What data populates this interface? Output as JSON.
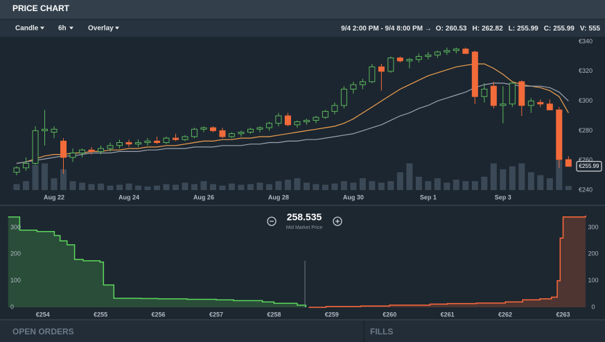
{
  "header": {
    "title": "PRICE CHART"
  },
  "toolbar": {
    "chart_type": "Candle",
    "interval": "6h",
    "overlay": "Overlay",
    "range": "9/4 2:00 PM - 9/4 8:00 PM →",
    "open_label": "O:",
    "high_label": "H:",
    "low_label": "L:",
    "close_label": "C:",
    "volume_label": "V:"
  },
  "chart_data": [
    {
      "type": "candlestick",
      "x": [
        0,
        0.25,
        0.5,
        0.75,
        1,
        1.25,
        1.5,
        1.75,
        2,
        2.25,
        2.5,
        2.75,
        3,
        3.25,
        3.5,
        3.75,
        4,
        4.25,
        4.5,
        4.75,
        5,
        5.25,
        5.5,
        5.75,
        6,
        6.25,
        6.5,
        6.75,
        7,
        7.25,
        7.5,
        7.75,
        8,
        8.25,
        8.5,
        8.75,
        9,
        9.25,
        9.5,
        9.75,
        10,
        10.25,
        10.5,
        10.75,
        11,
        11.25,
        11.5,
        11.75,
        12,
        12.25,
        12.5,
        12.75,
        13,
        13.25,
        13.5,
        13.75,
        14,
        14.25,
        14.5,
        14.75
      ],
      "open": [
        252,
        255,
        258,
        280,
        279,
        273,
        262,
        265,
        267,
        266,
        268,
        270,
        272,
        271,
        272,
        273,
        272,
        275,
        274,
        276,
        281,
        282,
        280,
        276,
        278,
        279,
        281,
        282,
        285,
        290,
        284,
        286,
        287,
        289,
        293,
        297,
        308,
        311,
        313,
        323,
        320,
        329,
        327,
        328,
        330,
        331,
        333,
        334,
        335,
        333,
        303,
        310,
        297,
        298,
        313,
        297,
        299,
        298,
        294,
        260.53
      ],
      "high": [
        256,
        262,
        283,
        294,
        283,
        275,
        268,
        268,
        269,
        270,
        272,
        274,
        274,
        274,
        275,
        276,
        276,
        278,
        277,
        282,
        283,
        283,
        282,
        279,
        280,
        282,
        283,
        286,
        292,
        292,
        287,
        288,
        290,
        294,
        299,
        310,
        313,
        315,
        325,
        325,
        330,
        330,
        329,
        332,
        333,
        334,
        336,
        336,
        336,
        334,
        312,
        313,
        310,
        313,
        314,
        302,
        301,
        301,
        296,
        262.82
      ],
      "low": [
        250,
        253,
        257,
        270,
        275,
        251,
        259,
        262,
        264,
        264,
        266,
        268,
        269,
        269,
        270,
        271,
        271,
        273,
        273,
        275,
        279,
        279,
        275,
        275,
        276,
        278,
        279,
        280,
        283,
        283,
        282,
        284,
        285,
        288,
        291,
        295,
        305,
        308,
        312,
        307,
        319,
        326,
        322,
        326,
        328,
        329,
        331,
        332,
        332,
        298,
        299,
        295,
        285,
        296,
        290,
        292,
        296,
        294,
        255,
        255.99
      ],
      "close": [
        255,
        258,
        280,
        281,
        281,
        262,
        265,
        267,
        266,
        268,
        270,
        272,
        271,
        272,
        273,
        272,
        275,
        274,
        276,
        281,
        282,
        280,
        276,
        278,
        279,
        281,
        282,
        285,
        290,
        284,
        286,
        287,
        289,
        293,
        297,
        308,
        311,
        313,
        323,
        320,
        329,
        327,
        328,
        330,
        331,
        333,
        334,
        335,
        332,
        303,
        308,
        297,
        298,
        312,
        297,
        300,
        298,
        294,
        260.53,
        255.99
      ],
      "up_color": "#5cb85c",
      "down_color": "#f26b3a",
      "overlays": [
        {
          "color": "#f0a050",
          "values": [
            258,
            259,
            261,
            263,
            264,
            264,
            265,
            265,
            266,
            266,
            267,
            267,
            268,
            268,
            269,
            269,
            270,
            270,
            271,
            272,
            273,
            273,
            274,
            274,
            275,
            275,
            276,
            276,
            277,
            278,
            279,
            280,
            281,
            282,
            283,
            285,
            288,
            292,
            296,
            300,
            304,
            308,
            311,
            314,
            317,
            319,
            321,
            323,
            324,
            325,
            325,
            322,
            318,
            313,
            311,
            310,
            309,
            307,
            303,
            292
          ]
        },
        {
          "color": "#9aa3b0",
          "values": [
            258,
            259,
            260,
            261,
            262,
            263,
            263,
            264,
            265,
            265,
            265,
            266,
            266,
            266,
            267,
            267,
            268,
            268,
            268,
            269,
            269,
            269,
            270,
            270,
            270,
            271,
            271,
            272,
            272,
            273,
            273,
            274,
            274,
            275,
            276,
            277,
            278,
            280,
            282,
            284,
            287,
            290,
            292,
            295,
            297,
            300,
            302,
            304,
            306,
            309,
            311,
            312,
            312,
            311,
            310,
            310,
            310,
            309,
            306,
            300
          ]
        }
      ],
      "volume": {
        "color": "#3b4957",
        "axis": "y2",
        "values": [
          800,
          1200,
          3400,
          3600,
          1600,
          2800,
          1200,
          1000,
          800,
          880,
          600,
          720,
          880,
          600,
          480,
          600,
          800,
          720,
          1000,
          800,
          1200,
          800,
          600,
          880,
          720,
          800,
          1000,
          800,
          1200,
          1400,
          1600,
          1000,
          800,
          720,
          880,
          1200,
          1000,
          1600,
          1200,
          1000,
          1200,
          2400,
          3600,
          1800,
          1200,
          1600,
          1000,
          1400,
          1200,
          1200,
          1800,
          3600,
          2800,
          3200,
          3600,
          2400,
          2000,
          1600,
          4000,
          555
        ]
      },
      "xlim": [
        -0.26,
        14.93
      ],
      "xticks": [
        {
          "value": 1,
          "label": "Aug 22"
        },
        {
          "value": 3,
          "label": "Aug 24"
        },
        {
          "value": 5,
          "label": "Aug 26"
        },
        {
          "value": 7,
          "label": "Aug 28"
        },
        {
          "value": 9,
          "label": "Aug 30"
        },
        {
          "value": 11,
          "label": "Sep 1"
        },
        {
          "value": 13,
          "label": "Sep 3"
        }
      ],
      "ylim": [
        240,
        340
      ],
      "yticks": [
        {
          "value": 240,
          "label": "€240"
        },
        {
          "value": 260,
          "label": "€260"
        },
        {
          "value": 280,
          "label": "€280"
        },
        {
          "value": 300,
          "label": "€300"
        },
        {
          "value": 320,
          "label": "€320"
        },
        {
          "value": 340,
          "label": "€340"
        }
      ],
      "y2lim": [
        0,
        20000
      ],
      "last_price": {
        "value": 255.99,
        "label": "€255.99"
      },
      "grid": false
    },
    {
      "type": "depth",
      "series": [
        {
          "color": "#5cd65c",
          "x": [
            253.4,
            253.6,
            253.9,
            254.2,
            254.3,
            254.42,
            254.55,
            254.7,
            254.99,
            255.05,
            255.23,
            255.7,
            256.0,
            256.5,
            257.0,
            257.3,
            257.8,
            258.0,
            258.4,
            258.55
          ],
          "values": [
            340,
            290,
            285,
            270,
            250,
            235,
            180,
            175,
            170,
            84,
            34,
            33,
            32,
            30,
            28,
            25,
            20,
            15,
            8,
            0
          ]
        },
        {
          "color": "#ff6a3d",
          "x": [
            258.6,
            258.9,
            259.5,
            260.0,
            260.7,
            261.0,
            261.5,
            262.0,
            262.3,
            262.6,
            262.8,
            262.9,
            262.95,
            263.0,
            263.39
          ],
          "values": [
            0,
            3,
            5,
            8,
            12,
            14,
            16,
            20,
            28,
            32,
            38,
            100,
            260,
            340,
            345
          ]
        }
      ],
      "mid_price": 258.535,
      "mid_price_label": "Mid Market Price",
      "xlim": [
        253.38,
        263.39
      ],
      "xticks": [
        {
          "value": 254,
          "label": "€254"
        },
        {
          "value": 255,
          "label": "€255"
        },
        {
          "value": 256,
          "label": "€256"
        },
        {
          "value": 257,
          "label": "€257"
        },
        {
          "value": 258,
          "label": "€258"
        },
        {
          "value": 259,
          "label": "€259"
        },
        {
          "value": 260,
          "label": "€260"
        },
        {
          "value": 261,
          "label": "€261"
        },
        {
          "value": 262,
          "label": "€262"
        },
        {
          "value": 263,
          "label": "€263"
        }
      ],
      "ylim": [
        0,
        360
      ],
      "yticks": [
        0,
        100,
        200,
        300
      ]
    }
  ],
  "panels": [
    "OPEN ORDERS",
    "FILLS"
  ]
}
